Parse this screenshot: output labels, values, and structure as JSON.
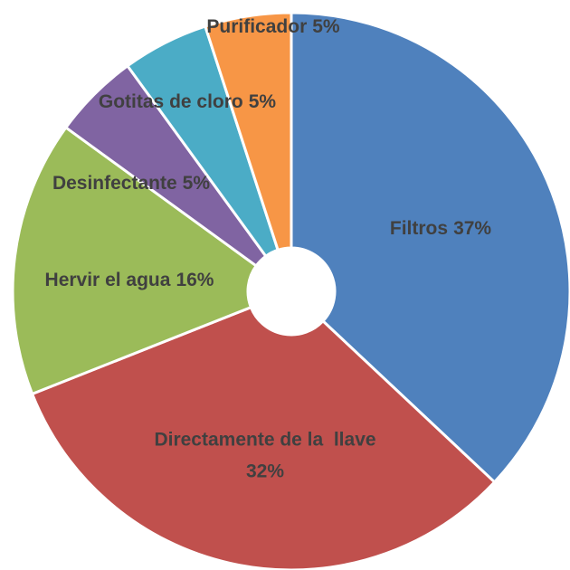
{
  "chart_data": {
    "type": "donut",
    "categories": [
      "Filtros",
      "Directamente de la  llave",
      "Hervir el agua",
      "Desinfectante",
      "Gotitas de cloro",
      "Purificador"
    ],
    "values": [
      37,
      32,
      16,
      5,
      5,
      5
    ],
    "value_labels": [
      "37%",
      "32%",
      "16%",
      "5%",
      "5%",
      "5%"
    ],
    "colors": [
      "#4f81bd",
      "#c0504d",
      "#9bbb59",
      "#8064a2",
      "#4bacc6",
      "#f79646"
    ]
  }
}
